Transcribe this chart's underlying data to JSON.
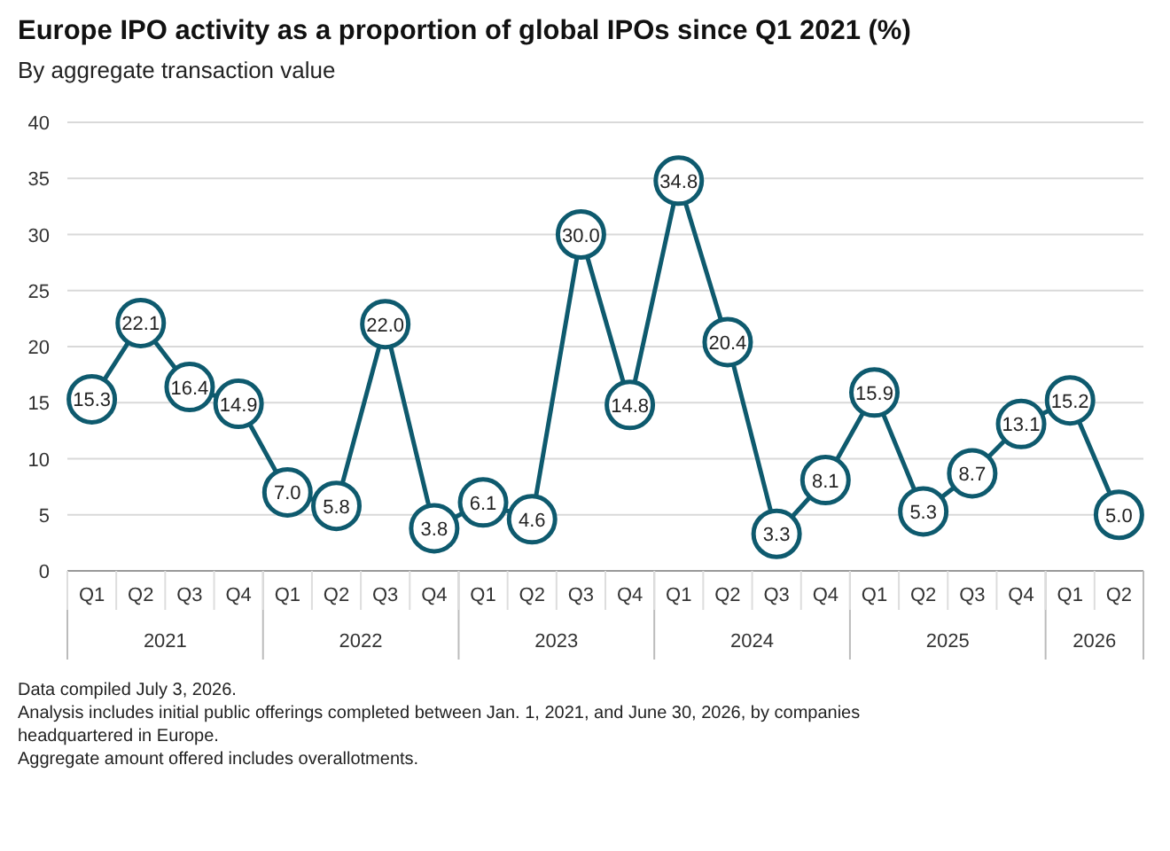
{
  "chart_data": {
    "type": "line",
    "title": "Europe IPO activity as a proportion of global IPOs since Q1 2021 (%)",
    "subtitle": "By aggregate transaction value",
    "categories": [
      "Q1",
      "Q2",
      "Q3",
      "Q4",
      "Q1",
      "Q2",
      "Q3",
      "Q4",
      "Q1",
      "Q2",
      "Q3",
      "Q4",
      "Q1",
      "Q2",
      "Q3",
      "Q4",
      "Q1",
      "Q2",
      "Q3",
      "Q4",
      "Q1",
      "Q2"
    ],
    "series": [
      {
        "color": "#0e5a6e",
        "values": [
          15.3,
          22.1,
          16.4,
          14.9,
          7.0,
          5.8,
          22.0,
          3.8,
          6.1,
          4.6,
          30.0,
          14.8,
          34.8,
          20.4,
          3.3,
          8.1,
          15.9,
          5.3,
          8.7,
          13.1,
          15.2,
          5.0
        ],
        "value_labels": [
          "15.3",
          "22.1",
          "16.4",
          "14.9",
          "7.0",
          "5.8",
          "22.0",
          "3.8",
          "6.1",
          "4.6",
          "30.0",
          "14.8",
          "34.8",
          "20.4",
          "3.3",
          "8.1",
          "15.9",
          "5.3",
          "8.7",
          "13.1",
          "15.2",
          "5.0"
        ]
      }
    ],
    "ylim": [
      0,
      40
    ],
    "yticks": [
      0,
      5,
      10,
      15,
      20,
      25,
      30,
      35,
      40
    ],
    "grid": "y",
    "marker": "circle",
    "line_style": "solid",
    "annotations": [
      "2021",
      "2022",
      "2023",
      "2024",
      "2025",
      "2026",
      "Data compiled July 3, 2026.",
      "Analysis includes initial public offerings completed between Jan. 1, 2021, and June 30, 2026, by companies headquartered in Europe.",
      "Aggregate amount offered includes overallotments."
    ]
  }
}
